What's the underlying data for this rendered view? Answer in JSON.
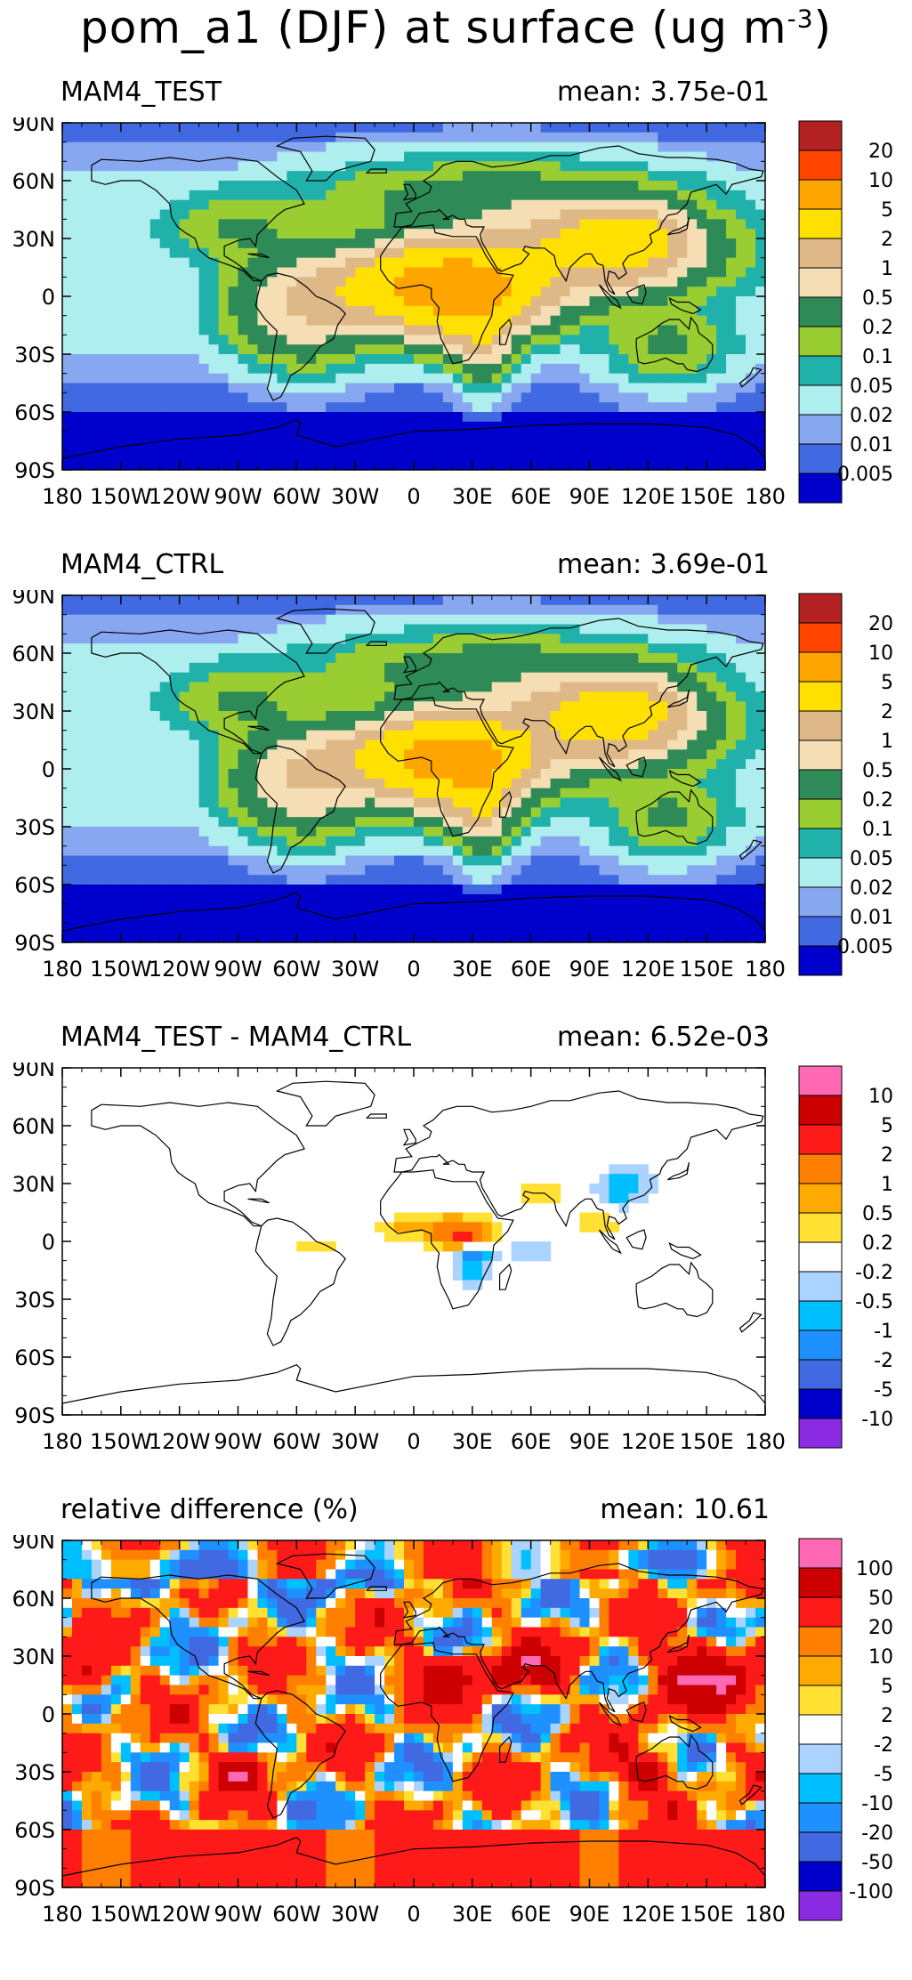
{
  "title": "pom_a1 (DJF) at surface (ug m",
  "title_exponent": "-3",
  "title_close": ")",
  "chart_data": [
    {
      "type": "heatmap",
      "label": "MAM4_TEST",
      "mean_text": "mean: 3.75e-01",
      "xlim": [
        -180,
        180
      ],
      "ylim": [
        -90,
        90
      ],
      "xticks": [
        "180",
        "150W",
        "120W",
        "90W",
        "60W",
        "30W",
        "0",
        "30E",
        "60E",
        "90E",
        "120E",
        "150E",
        "180"
      ],
      "yticks": [
        "90N",
        "60N",
        "30N",
        "0",
        "30S",
        "60S",
        "90S"
      ],
      "colorbar": {
        "labels": [
          "20",
          "10",
          "5",
          "2",
          "1",
          "0.5",
          "0.2",
          "0.1",
          "0.05",
          "0.02",
          "0.01",
          "0.005"
        ],
        "colors": [
          "#b22222",
          "#ff4500",
          "#ffa500",
          "#ffe000",
          "#deb887",
          "#f5deb3",
          "#2e8b57",
          "#9acd32",
          "#20b2aa",
          "#afeeee",
          "#87a8f0",
          "#4169e1",
          "#0000cd"
        ]
      },
      "field": "concentration",
      "features": [
        {
          "lon": 20,
          "lat": 5,
          "value": 7,
          "w": 25,
          "h": 12
        },
        {
          "lon": 0,
          "lat": 5,
          "value": 2,
          "w": 30,
          "h": 10
        },
        {
          "lon": 35,
          "lat": -10,
          "value": 2,
          "w": 8,
          "h": 15
        },
        {
          "lon": 95,
          "lat": 25,
          "value": 2,
          "w": 30,
          "h": 12
        },
        {
          "lon": 110,
          "lat": 30,
          "value": 2,
          "w": 15,
          "h": 10
        },
        {
          "lon": -55,
          "lat": -5,
          "value": 1,
          "w": 20,
          "h": 15
        },
        {
          "lon": 25,
          "lat": -15,
          "value": 0.6,
          "w": 15,
          "h": 10
        },
        {
          "lon": 80,
          "lat": 20,
          "value": 0.5,
          "w": 35,
          "h": 15
        },
        {
          "lon": 40,
          "lat": 50,
          "value": 0.3,
          "w": 50,
          "h": 12
        },
        {
          "lon": -90,
          "lat": 35,
          "value": 0.2,
          "w": 20,
          "h": 10
        },
        {
          "lon": 130,
          "lat": -25,
          "value": 0.2,
          "w": 18,
          "h": 12
        }
      ]
    },
    {
      "type": "heatmap",
      "label": "MAM4_CTRL",
      "mean_text": "mean: 3.69e-01",
      "xlim": [
        -180,
        180
      ],
      "ylim": [
        -90,
        90
      ],
      "xticks": [
        "180",
        "150W",
        "120W",
        "90W",
        "60W",
        "30W",
        "0",
        "30E",
        "60E",
        "90E",
        "120E",
        "150E",
        "180"
      ],
      "yticks": [
        "90N",
        "60N",
        "30N",
        "0",
        "30S",
        "60S",
        "90S"
      ],
      "colorbar": {
        "labels": [
          "20",
          "10",
          "5",
          "2",
          "1",
          "0.5",
          "0.2",
          "0.1",
          "0.05",
          "0.02",
          "0.01",
          "0.005"
        ],
        "colors": [
          "#b22222",
          "#ff4500",
          "#ffa500",
          "#ffe000",
          "#deb887",
          "#f5deb3",
          "#2e8b57",
          "#9acd32",
          "#20b2aa",
          "#afeeee",
          "#87a8f0",
          "#4169e1",
          "#0000cd"
        ]
      },
      "field": "concentration",
      "features": [
        {
          "lon": 20,
          "lat": 5,
          "value": 6,
          "w": 22,
          "h": 12
        },
        {
          "lon": 0,
          "lat": 5,
          "value": 2,
          "w": 28,
          "h": 10
        },
        {
          "lon": 35,
          "lat": -10,
          "value": 2,
          "w": 8,
          "h": 15
        },
        {
          "lon": 95,
          "lat": 25,
          "value": 2,
          "w": 28,
          "h": 12
        },
        {
          "lon": 110,
          "lat": 30,
          "value": 2,
          "w": 15,
          "h": 10
        },
        {
          "lon": -55,
          "lat": -5,
          "value": 1,
          "w": 20,
          "h": 15
        },
        {
          "lon": 25,
          "lat": -15,
          "value": 0.6,
          "w": 15,
          "h": 10
        },
        {
          "lon": 80,
          "lat": 20,
          "value": 0.5,
          "w": 35,
          "h": 15
        },
        {
          "lon": 40,
          "lat": 50,
          "value": 0.3,
          "w": 50,
          "h": 12
        },
        {
          "lon": -90,
          "lat": 35,
          "value": 0.2,
          "w": 20,
          "h": 10
        },
        {
          "lon": 130,
          "lat": -25,
          "value": 0.2,
          "w": 18,
          "h": 12
        }
      ]
    },
    {
      "type": "heatmap",
      "label": "MAM4_TEST - MAM4_CTRL",
      "mean_text": "mean: 6.52e-03",
      "xlim": [
        -180,
        180
      ],
      "ylim": [
        -90,
        90
      ],
      "xticks": [
        "180",
        "150W",
        "120W",
        "90W",
        "60W",
        "30W",
        "0",
        "30E",
        "60E",
        "90E",
        "120E",
        "150E",
        "180"
      ],
      "yticks": [
        "90N",
        "60N",
        "30N",
        "0",
        "30S",
        "60S",
        "90S"
      ],
      "colorbar": {
        "labels": [
          "10",
          "5",
          "2",
          "1",
          "0.5",
          "0.2",
          "-0.2",
          "-0.5",
          "-1",
          "-2",
          "-5",
          "-10"
        ],
        "colors": [
          "#ff69b4",
          "#cc0000",
          "#ff1a1a",
          "#ff7f00",
          "#ffaa00",
          "#ffe033",
          "#ffffff",
          "#aad4ff",
          "#00bfff",
          "#1e90ff",
          "#4169e1",
          "#0000cd",
          "#8a2be2"
        ]
      },
      "field": "difference",
      "features": [
        {
          "lon": 25,
          "lat": 3,
          "value": 2.5,
          "w": 8,
          "h": 4
        },
        {
          "lon": 15,
          "lat": 8,
          "value": 0.6,
          "w": 18,
          "h": 6
        },
        {
          "lon": -10,
          "lat": 6,
          "value": 0.3,
          "w": 10,
          "h": 3
        },
        {
          "lon": -50,
          "lat": -2,
          "value": 0.3,
          "w": 10,
          "h": 4
        },
        {
          "lon": 65,
          "lat": 25,
          "value": 0.4,
          "w": 8,
          "h": 5
        },
        {
          "lon": 95,
          "lat": 12,
          "value": 0.5,
          "w": 8,
          "h": 6
        },
        {
          "lon": 30,
          "lat": -8,
          "value": -1.2,
          "w": 6,
          "h": 8
        },
        {
          "lon": 110,
          "lat": 30,
          "value": -0.7,
          "w": 10,
          "h": 6
        },
        {
          "lon": 60,
          "lat": -5,
          "value": -0.3,
          "w": 12,
          "h": 6
        },
        {
          "lon": 100,
          "lat": 20,
          "value": -0.4,
          "w": 8,
          "h": 5
        }
      ]
    },
    {
      "type": "heatmap",
      "label": "relative difference (%)",
      "mean_text": "mean: 10.61",
      "xlim": [
        -180,
        180
      ],
      "ylim": [
        -90,
        90
      ],
      "xticks": [
        "180",
        "150W",
        "120W",
        "90W",
        "60W",
        "30W",
        "0",
        "30E",
        "60E",
        "90E",
        "120E",
        "150E",
        "180"
      ],
      "yticks": [
        "90N",
        "60N",
        "30N",
        "0",
        "30S",
        "60S",
        "90S"
      ],
      "colorbar": {
        "labels": [
          "100",
          "50",
          "20",
          "10",
          "5",
          "2",
          "-2",
          "-5",
          "-10",
          "-20",
          "-50",
          "-100"
        ],
        "colors": [
          "#ff69b4",
          "#cc0000",
          "#ff1a1a",
          "#ff7f00",
          "#ffaa00",
          "#ffe033",
          "#ffffff",
          "#aad4ff",
          "#00bfff",
          "#1e90ff",
          "#4169e1",
          "#0000cd",
          "#8a2be2"
        ]
      },
      "field": "relative",
      "features": [
        {
          "lon": 150,
          "lat": 20,
          "value": 80,
          "w": 20,
          "h": 12
        },
        {
          "lon": 60,
          "lat": 25,
          "value": 60,
          "w": 12,
          "h": 8
        },
        {
          "lon": 20,
          "lat": 20,
          "value": 60,
          "w": 15,
          "h": 8
        },
        {
          "lon": -120,
          "lat": 75,
          "value": -40,
          "w": 25,
          "h": 8
        },
        {
          "lon": 120,
          "lat": 80,
          "value": -40,
          "w": 20,
          "h": 5
        },
        {
          "lon": -170,
          "lat": 20,
          "value": 60,
          "w": 10,
          "h": 8
        },
        {
          "lon": -30,
          "lat": 70,
          "value": -30,
          "w": 15,
          "h": 6
        },
        {
          "lon": 120,
          "lat": -30,
          "value": 60,
          "w": 12,
          "h": 8
        },
        {
          "lon": -90,
          "lat": -30,
          "value": 70,
          "w": 8,
          "h": 6
        }
      ]
    }
  ]
}
